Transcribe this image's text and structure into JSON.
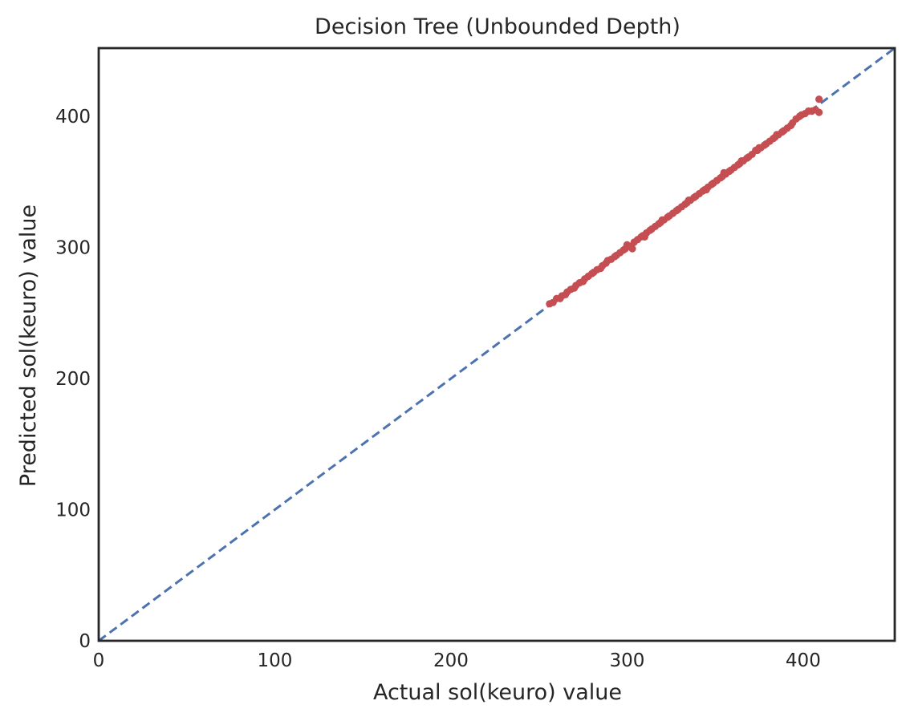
{
  "chart_data": {
    "type": "scatter",
    "title": "Decision Tree (Unbounded Depth)",
    "xlabel": "Actual sol(keuro) value",
    "ylabel": "Predicted sol(keuro) value",
    "xlim": [
      0,
      452
    ],
    "ylim": [
      0,
      452
    ],
    "xticks": [
      0,
      100,
      200,
      300,
      400
    ],
    "yticks": [
      0,
      100,
      200,
      300,
      400
    ],
    "grid": false,
    "legend": "none",
    "reference_line": {
      "style": "dashed",
      "color": "#4c72b0",
      "from": [
        0,
        0
      ],
      "to": [
        452,
        452
      ]
    },
    "series": [
      {
        "color": "#c44e52",
        "points": [
          [
            256,
            257
          ],
          [
            258,
            258
          ],
          [
            260,
            261
          ],
          [
            262,
            261
          ],
          [
            263,
            263
          ],
          [
            265,
            264
          ],
          [
            266,
            266
          ],
          [
            268,
            268
          ],
          [
            270,
            269
          ],
          [
            271,
            271
          ],
          [
            273,
            273
          ],
          [
            275,
            274
          ],
          [
            276,
            276
          ],
          [
            278,
            278
          ],
          [
            280,
            280
          ],
          [
            281,
            281
          ],
          [
            283,
            283
          ],
          [
            285,
            284
          ],
          [
            286,
            286
          ],
          [
            288,
            288
          ],
          [
            289,
            290
          ],
          [
            291,
            291
          ],
          [
            293,
            293
          ],
          [
            294,
            294
          ],
          [
            296,
            296
          ],
          [
            298,
            298
          ],
          [
            299,
            299
          ],
          [
            301,
            301
          ],
          [
            303,
            299
          ],
          [
            304,
            304
          ],
          [
            306,
            306
          ],
          [
            308,
            308
          ],
          [
            309,
            309
          ],
          [
            311,
            311
          ],
          [
            313,
            313
          ],
          [
            314,
            314
          ],
          [
            316,
            316
          ],
          [
            318,
            318
          ],
          [
            319,
            319
          ],
          [
            321,
            321
          ],
          [
            323,
            323
          ],
          [
            324,
            324
          ],
          [
            326,
            326
          ],
          [
            328,
            328
          ],
          [
            329,
            329
          ],
          [
            331,
            331
          ],
          [
            333,
            333
          ],
          [
            334,
            334
          ],
          [
            336,
            336
          ],
          [
            338,
            338
          ],
          [
            339,
            339
          ],
          [
            341,
            341
          ],
          [
            343,
            343
          ],
          [
            344,
            344
          ],
          [
            346,
            346
          ],
          [
            348,
            348
          ],
          [
            349,
            349
          ],
          [
            351,
            351
          ],
          [
            353,
            353
          ],
          [
            354,
            354
          ],
          [
            356,
            356
          ],
          [
            358,
            358
          ],
          [
            359,
            359
          ],
          [
            361,
            361
          ],
          [
            363,
            363
          ],
          [
            364,
            364
          ],
          [
            366,
            366
          ],
          [
            368,
            368
          ],
          [
            369,
            369
          ],
          [
            371,
            371
          ],
          [
            373,
            374
          ],
          [
            374,
            374
          ],
          [
            376,
            376
          ],
          [
            378,
            378
          ],
          [
            379,
            379
          ],
          [
            381,
            381
          ],
          [
            383,
            383
          ],
          [
            384,
            384
          ],
          [
            386,
            386
          ],
          [
            388,
            388
          ],
          [
            389,
            389
          ],
          [
            391,
            391
          ],
          [
            393,
            393
          ],
          [
            394,
            395
          ],
          [
            396,
            398
          ],
          [
            398,
            400
          ],
          [
            399,
            401
          ],
          [
            401,
            402
          ],
          [
            403,
            404
          ],
          [
            405,
            404
          ],
          [
            407,
            405
          ],
          [
            409,
            413
          ],
          [
            409,
            403
          ],
          [
            300,
            302
          ],
          [
            310,
            308
          ],
          [
            320,
            321
          ],
          [
            335,
            336
          ],
          [
            345,
            344
          ],
          [
            355,
            357
          ],
          [
            365,
            366
          ],
          [
            375,
            376
          ],
          [
            385,
            386
          ]
        ]
      }
    ]
  }
}
